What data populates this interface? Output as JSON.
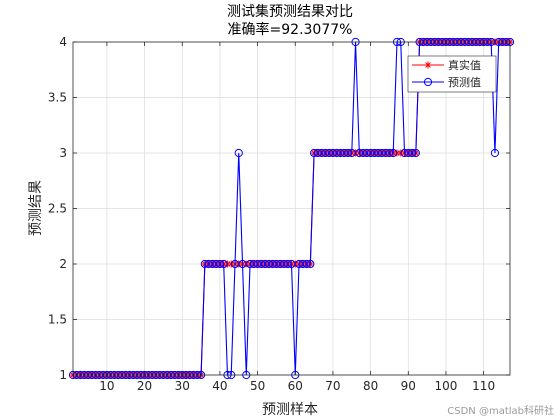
{
  "chart_data": {
    "type": "line",
    "title": "测试集预测结果对比",
    "subtitle": "准确率=92.3077%",
    "xlabel": "预测样本",
    "ylabel": "预测结果",
    "xlim": [
      1,
      117
    ],
    "ylim": [
      1,
      4
    ],
    "xticks": [
      10,
      20,
      30,
      40,
      50,
      60,
      70,
      80,
      90,
      100,
      110
    ],
    "yticks": [
      1,
      1.5,
      2,
      2.5,
      3,
      3.5,
      4
    ],
    "grid": true,
    "legend": "top-right",
    "series": [
      {
        "name": "真实值",
        "color": "#ff0000",
        "marker": "star",
        "segments": [
          {
            "from": 1,
            "to": 35,
            "value": 1
          },
          {
            "from": 36,
            "to": 64,
            "value": 2
          },
          {
            "from": 65,
            "to": 92,
            "value": 3
          },
          {
            "from": 93,
            "to": 117,
            "value": 4
          }
        ]
      },
      {
        "name": "预测值",
        "color": "#0000ff",
        "marker": "circle",
        "segments": [
          {
            "from": 1,
            "to": 35,
            "value": 1
          },
          {
            "from": 36,
            "to": 64,
            "value": 2
          },
          {
            "from": 65,
            "to": 92,
            "value": 3
          },
          {
            "from": 93,
            "to": 117,
            "value": 4
          }
        ],
        "overrides": [
          [
            42,
            1
          ],
          [
            43,
            1
          ],
          [
            45,
            3
          ],
          [
            47,
            1
          ],
          [
            60,
            1
          ],
          [
            76,
            4
          ],
          [
            87,
            4
          ],
          [
            88,
            4
          ],
          [
            113,
            3
          ]
        ]
      }
    ]
  },
  "watermark": "CSDN @matlab科研社"
}
